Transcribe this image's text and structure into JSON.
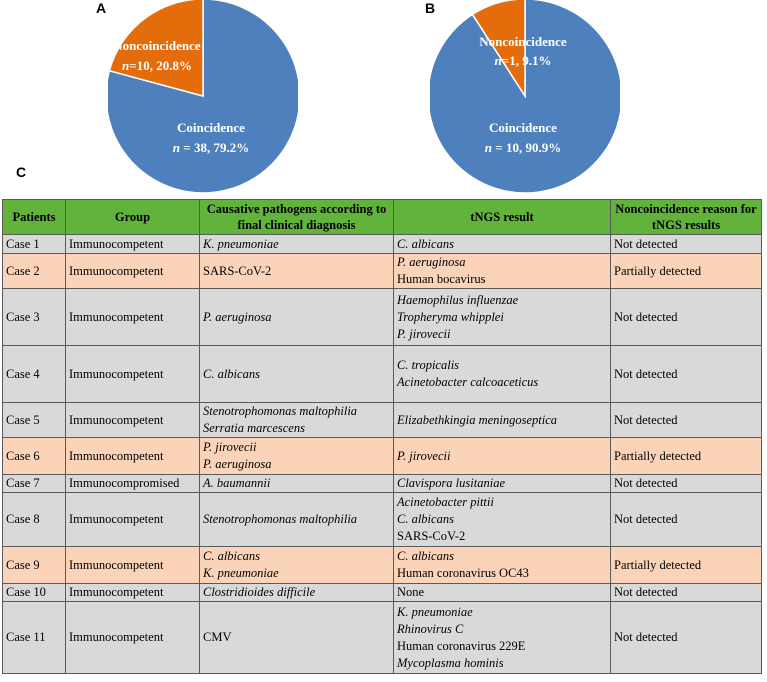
{
  "panels": {
    "a": "A",
    "b": "B",
    "c": "C"
  },
  "chart_data": [
    {
      "type": "pie",
      "panel": "A",
      "slices": [
        {
          "name": "Coincidence",
          "label_line1": "Coincidence",
          "label_n": "n",
          "label_rest": " = 38, 79.2%",
          "count": 38,
          "percent": 79.2,
          "color": "#4e80bd"
        },
        {
          "name": "Noncoincidence",
          "label_line1": "Noncoincidence",
          "label_n": "n",
          "label_rest": "=10, 20.8%",
          "count": 10,
          "percent": 20.8,
          "color": "#e46c0a"
        }
      ]
    },
    {
      "type": "pie",
      "panel": "B",
      "slices": [
        {
          "name": "Coincidence",
          "label_line1": "Coincidence",
          "label_n": "n",
          "label_rest": " = 10, 90.9%",
          "count": 10,
          "percent": 90.9,
          "color": "#4e80bd"
        },
        {
          "name": "Noncoincidence",
          "label_line1": "Noncoincidence",
          "label_n": "n",
          "label_rest": "=1, 9.1%",
          "count": 1,
          "percent": 9.1,
          "color": "#e46c0a"
        }
      ]
    }
  ],
  "table": {
    "headers": [
      "Patients",
      "Group",
      "Causative pathogens according to final clinical diagnosis",
      "tNGS result",
      "Noncoincidence reason for tNGS results"
    ],
    "rows": [
      {
        "patient": "Case 1",
        "group": "Immunocompetent",
        "shade": "gray",
        "causative": [
          {
            "t": "K. pneumoniae",
            "i": true
          }
        ],
        "tngs": [
          {
            "t": "C. albicans",
            "i": true
          }
        ],
        "reason": "Not detected"
      },
      {
        "patient": "Case 2",
        "group": "Immunocompetent",
        "shade": "peach",
        "causative": [
          {
            "t": "SARS-CoV-2",
            "i": false
          }
        ],
        "tngs": [
          {
            "t": "P. aeruginosa",
            "i": true
          },
          {
            "t": "Human bocavirus",
            "i": false
          }
        ],
        "reason": "Partially detected"
      },
      {
        "patient": "Case 3",
        "group": "Immunocompetent",
        "shade": "gray",
        "causative": [
          {
            "t": "P. aeruginosa",
            "i": true
          }
        ],
        "tngs": [
          {
            "t": "Haemophilus influenzae",
            "i": true
          },
          {
            "t": "Tropheryma whipplei",
            "i": true
          },
          {
            "t": "P. jirovecii",
            "i": true
          }
        ],
        "reason": "Not detected"
      },
      {
        "patient": "Case 4",
        "group": "Immunocompetent",
        "shade": "gray",
        "causative": [
          {
            "t": "C. albicans",
            "i": true
          }
        ],
        "tngs": [
          {
            "t": "C. tropicalis",
            "i": true
          },
          {
            "t": "Acinetobacter calcoaceticus",
            "i": true
          }
        ],
        "reason": "Not detected"
      },
      {
        "patient": "Case 5",
        "group": "Immunocompetent",
        "shade": "gray",
        "causative": [
          {
            "t": "Stenotrophomonas maltophilia",
            "i": true
          },
          {
            "t": "Serratia marcescens",
            "i": true
          }
        ],
        "tngs": [
          {
            "t": "Elizabethkingia meningoseptica",
            "i": true
          }
        ],
        "reason": "Not detected"
      },
      {
        "patient": "Case 6",
        "group": "Immunocompetent",
        "shade": "peach",
        "causative": [
          {
            "t": "P. jirovecii",
            "i": true
          },
          {
            "t": "P. aeruginosa",
            "i": true
          }
        ],
        "tngs": [
          {
            "t": "P. jirovecii",
            "i": true
          }
        ],
        "reason": "Partially detected"
      },
      {
        "patient": "Case 7",
        "group": "Immunocompromised",
        "shade": "gray",
        "causative": [
          {
            "t": "A. baumannii",
            "i": true
          }
        ],
        "tngs": [
          {
            "t": "Clavispora lusitaniae",
            "i": true
          }
        ],
        "reason": "Not detected"
      },
      {
        "patient": "Case 8",
        "group": "Immunocompetent",
        "shade": "gray",
        "causative": [
          {
            "t": "Stenotrophomonas maltophilia",
            "i": true
          }
        ],
        "tngs": [
          {
            "t": "Acinetobacter pittii",
            "i": true
          },
          {
            "t": "C. albicans",
            "i": true
          },
          {
            "t": "SARS-CoV-2",
            "i": false
          }
        ],
        "reason": "Not detected"
      },
      {
        "patient": "Case 9",
        "group": "Immunocompetent",
        "shade": "peach",
        "causative": [
          {
            "t": "C. albicans",
            "i": true
          },
          {
            "t": "K. pneumoniae",
            "i": true
          }
        ],
        "tngs": [
          {
            "t": "C. albicans",
            "i": true
          },
          {
            "t": "Human coronavirus OC43",
            "i": false
          }
        ],
        "reason": "Partially detected"
      },
      {
        "patient": "Case 10",
        "group": "Immunocompetent",
        "shade": "gray",
        "causative": [
          {
            "t": "Clostridioides difficile",
            "i": true
          }
        ],
        "tngs": [
          {
            "t": "None",
            "i": false
          }
        ],
        "reason": "Not detected"
      },
      {
        "patient": "Case 11",
        "group": "Immunocompetent",
        "shade": "gray",
        "causative": [
          {
            "t": "CMV",
            "i": false
          }
        ],
        "tngs": [
          {
            "t": "K. pneumoniae",
            "i": true
          },
          {
            "t": "Rhinovirus C",
            "i": true
          },
          {
            "t": "Human coronavirus 229E",
            "i": false
          },
          {
            "t": "Mycoplasma hominis",
            "i": true
          }
        ],
        "reason": "Not detected"
      }
    ]
  }
}
